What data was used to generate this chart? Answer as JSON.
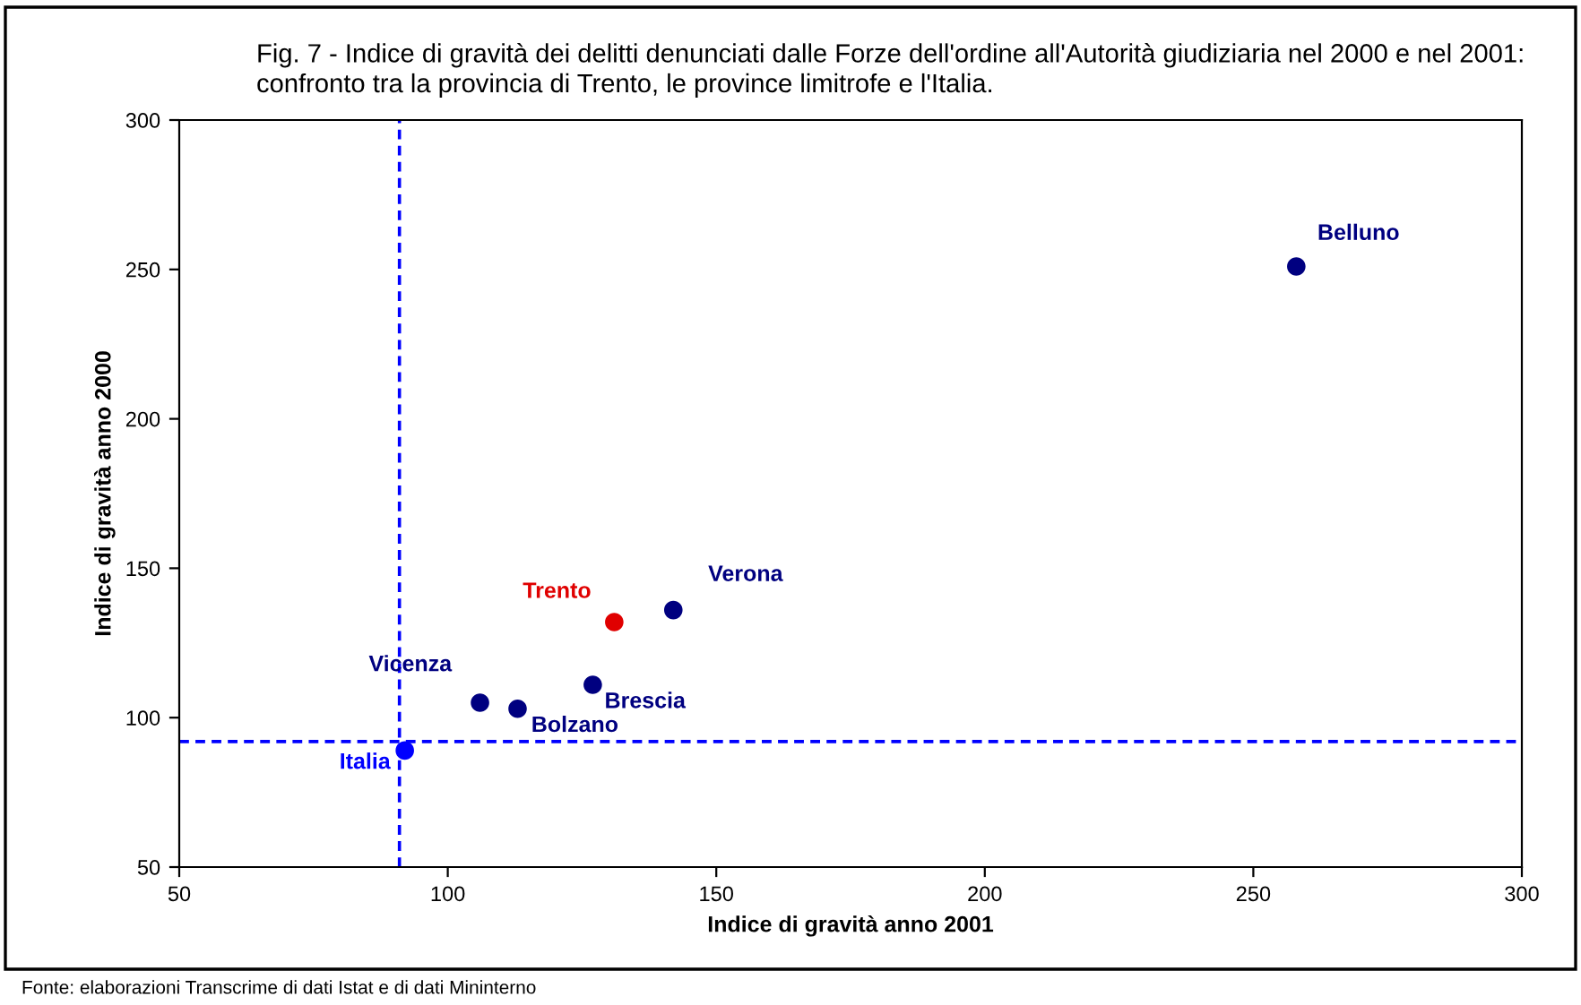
{
  "chart_data": {
    "type": "scatter",
    "title": "Fig. 7 - Indice di gravità dei delitti denunciati dalle Forze dell'ordine all'Autorità giudiziaria nel 2000 e nel 2001: confronto tra la provincia di Trento, le province limitrofe e l'Italia.",
    "xlabel": "Indice di gravità anno 2001",
    "ylabel": "Indice di gravità anno 2000",
    "xlim": [
      50,
      300
    ],
    "ylim": [
      50,
      300
    ],
    "xticks": [
      50,
      100,
      150,
      200,
      250,
      300
    ],
    "yticks": [
      50,
      100,
      150,
      200,
      250,
      300
    ],
    "grid": false,
    "legend": false,
    "marker": "circle",
    "series": [
      {
        "name": "Belluno",
        "color": "#000080",
        "x": [
          258
        ],
        "values": [
          251
        ]
      },
      {
        "name": "Verona",
        "color": "#000080",
        "x": [
          142
        ],
        "values": [
          136
        ]
      },
      {
        "name": "Trento",
        "color": "#e00000",
        "x": [
          131
        ],
        "values": [
          132
        ]
      },
      {
        "name": "Brescia",
        "color": "#000080",
        "x": [
          127
        ],
        "values": [
          111
        ]
      },
      {
        "name": "Bolzano",
        "color": "#000080",
        "x": [
          113
        ],
        "values": [
          103
        ]
      },
      {
        "name": "Vicenza",
        "color": "#000080",
        "x": [
          106
        ],
        "values": [
          105
        ]
      },
      {
        "name": "Italia",
        "color": "#0000ff",
        "x": [
          92
        ],
        "values": [
          89
        ]
      }
    ],
    "ref_lines": [
      {
        "axis": "x",
        "value": 91,
        "color": "#0000ff",
        "line_style": "dashed"
      },
      {
        "axis": "y",
        "value": 92,
        "color": "#0000ff",
        "line_style": "dashed"
      }
    ],
    "annotations": [
      "Fonte: elaborazioni Transcrime di dati Istat e di dati Mininterno"
    ]
  }
}
